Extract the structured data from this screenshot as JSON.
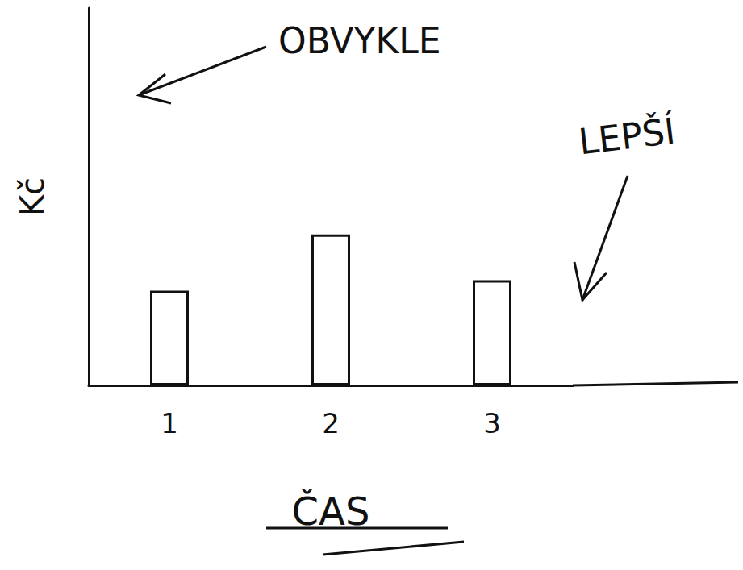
{
  "chart_data": {
    "type": "bar",
    "categories": [
      "1",
      "2",
      "3"
    ],
    "values": [
      118,
      188,
      131
    ],
    "ylim": [
      0,
      470
    ],
    "y_label": "Kč",
    "x_label": "ČAS",
    "annotations": [
      "OBVYKLE",
      "LEPŠÍ"
    ],
    "color": "#ffffff",
    "grid": false,
    "tick_labels": "x"
  }
}
